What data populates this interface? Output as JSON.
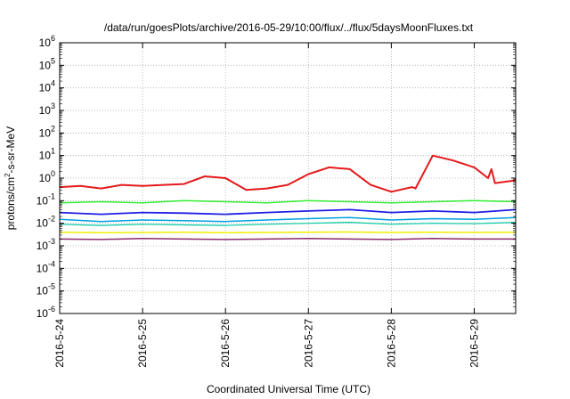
{
  "chart_data": {
    "type": "line",
    "title": "/data/run/goesPlots/archive/2016-05-29/10:00/flux/../flux/5daysMoonFluxes.txt",
    "xlabel": "Coordinated Universal Time (UTC)",
    "ylabel": "protons/cm²-s-sr-MeV",
    "ylabel_parts": {
      "base": "protons/cm",
      "sup": "2",
      "rest": "-s-sr-MeV"
    },
    "y_scale": "log",
    "ylim": [
      1e-06,
      1000000.0
    ],
    "y_ticks": [
      {
        "base": "10",
        "exp": "-6",
        "value": -6
      },
      {
        "base": "10",
        "exp": "-5",
        "value": -5
      },
      {
        "base": "10",
        "exp": "-4",
        "value": -4
      },
      {
        "base": "10",
        "exp": "-3",
        "value": -3
      },
      {
        "base": "10",
        "exp": "-2",
        "value": -2
      },
      {
        "base": "10",
        "exp": "-1",
        "value": -1
      },
      {
        "base": "10",
        "exp": "0",
        "value": 0
      },
      {
        "base": "10",
        "exp": "1",
        "value": 1
      },
      {
        "base": "10",
        "exp": "2",
        "value": 2
      },
      {
        "base": "10",
        "exp": "3",
        "value": 3
      },
      {
        "base": "10",
        "exp": "4",
        "value": 4
      },
      {
        "base": "10",
        "exp": "5",
        "value": 5
      },
      {
        "base": "10",
        "exp": "6",
        "value": 6
      }
    ],
    "xlim": [
      "2016-05-24 00:00",
      "2016-05-29 12:00"
    ],
    "x_ticks": [
      {
        "label": "2016-5-24",
        "value": "2016-05-24"
      },
      {
        "label": "2016-5-25",
        "value": "2016-05-25"
      },
      {
        "label": "2016-5-26",
        "value": "2016-05-26"
      },
      {
        "label": "2016-5-27",
        "value": "2016-05-27"
      },
      {
        "label": "2016-5-28",
        "value": "2016-05-28"
      },
      {
        "label": "2016-5-29",
        "value": "2016-05-29"
      }
    ],
    "grid": true,
    "legend": "none",
    "series": [
      {
        "color": "#e41a1c",
        "width": 2,
        "x": [
          "2016-05-24 00:00",
          "2016-05-24 06:00",
          "2016-05-24 12:00",
          "2016-05-24 18:00",
          "2016-05-25 00:00",
          "2016-05-25 06:00",
          "2016-05-25 12:00",
          "2016-05-25 18:00",
          "2016-05-26 00:00",
          "2016-05-26 06:00",
          "2016-05-26 12:00",
          "2016-05-26 18:00",
          "2016-05-27 00:00",
          "2016-05-27 06:00",
          "2016-05-27 12:00",
          "2016-05-27 18:00",
          "2016-05-28 00:00",
          "2016-05-28 06:00",
          "2016-05-28 07:00",
          "2016-05-28 12:00",
          "2016-05-28 18:00",
          "2016-05-29 00:00",
          "2016-05-29 04:00",
          "2016-05-29 05:00",
          "2016-05-29 06:00",
          "2016-05-29 12:00"
        ],
        "y": [
          0.4,
          0.45,
          0.35,
          0.5,
          0.45,
          0.5,
          0.55,
          1.2,
          1.0,
          0.3,
          0.35,
          0.5,
          1.5,
          3.0,
          2.5,
          0.5,
          0.25,
          0.4,
          0.35,
          10,
          6,
          3,
          1.0,
          2.5,
          0.6,
          0.8
        ]
      },
      {
        "color": "#33ee33",
        "width": 1.5,
        "x": [
          "2016-05-24 00:00",
          "2016-05-24 12:00",
          "2016-05-25 00:00",
          "2016-05-25 12:00",
          "2016-05-26 00:00",
          "2016-05-26 12:00",
          "2016-05-27 00:00",
          "2016-05-27 12:00",
          "2016-05-28 00:00",
          "2016-05-28 12:00",
          "2016-05-29 00:00",
          "2016-05-29 12:00"
        ],
        "y": [
          0.08,
          0.09,
          0.08,
          0.1,
          0.09,
          0.08,
          0.1,
          0.09,
          0.08,
          0.09,
          0.1,
          0.09
        ]
      },
      {
        "color": "#1e1ee6",
        "width": 1.8,
        "x": [
          "2016-05-24 00:00",
          "2016-05-24 12:00",
          "2016-05-25 00:00",
          "2016-05-25 12:00",
          "2016-05-26 00:00",
          "2016-05-26 12:00",
          "2016-05-27 00:00",
          "2016-05-27 12:00",
          "2016-05-28 00:00",
          "2016-05-28 12:00",
          "2016-05-29 00:00",
          "2016-05-29 12:00"
        ],
        "y": [
          0.03,
          0.025,
          0.03,
          0.028,
          0.025,
          0.03,
          0.035,
          0.04,
          0.03,
          0.035,
          0.03,
          0.04
        ]
      },
      {
        "color": "#00a0e0",
        "width": 1.5,
        "x": [
          "2016-05-24 00:00",
          "2016-05-24 12:00",
          "2016-05-25 00:00",
          "2016-05-25 12:00",
          "2016-05-26 00:00",
          "2016-05-26 12:00",
          "2016-05-27 00:00",
          "2016-05-27 12:00",
          "2016-05-28 00:00",
          "2016-05-28 12:00",
          "2016-05-29 00:00",
          "2016-05-29 12:00"
        ],
        "y": [
          0.015,
          0.012,
          0.014,
          0.013,
          0.012,
          0.014,
          0.016,
          0.018,
          0.014,
          0.016,
          0.015,
          0.018
        ]
      },
      {
        "color": "#00c8a0",
        "width": 1.2,
        "x": [
          "2016-05-24 00:00",
          "2016-05-24 12:00",
          "2016-05-25 00:00",
          "2016-05-25 12:00",
          "2016-05-26 00:00",
          "2016-05-26 12:00",
          "2016-05-27 00:00",
          "2016-05-27 12:00",
          "2016-05-28 00:00",
          "2016-05-28 12:00",
          "2016-05-29 00:00",
          "2016-05-29 12:00"
        ],
        "y": [
          0.009,
          0.008,
          0.009,
          0.0085,
          0.008,
          0.009,
          0.01,
          0.011,
          0.009,
          0.01,
          0.0095,
          0.011
        ]
      },
      {
        "color": "#f0f000",
        "width": 1.5,
        "x": [
          "2016-05-24 00:00",
          "2016-05-24 12:00",
          "2016-05-25 00:00",
          "2016-05-25 12:00",
          "2016-05-26 00:00",
          "2016-05-26 12:00",
          "2016-05-27 00:00",
          "2016-05-27 12:00",
          "2016-05-28 00:00",
          "2016-05-28 12:00",
          "2016-05-29 00:00",
          "2016-05-29 12:00"
        ],
        "y": [
          0.004,
          0.0038,
          0.0039,
          0.004,
          0.0038,
          0.0039,
          0.004,
          0.0041,
          0.0039,
          0.004,
          0.0039,
          0.004
        ]
      },
      {
        "color": "#8b2a6b",
        "width": 1.5,
        "x": [
          "2016-05-24 00:00",
          "2016-05-24 12:00",
          "2016-05-25 00:00",
          "2016-05-25 12:00",
          "2016-05-26 00:00",
          "2016-05-26 12:00",
          "2016-05-27 00:00",
          "2016-05-27 12:00",
          "2016-05-28 00:00",
          "2016-05-28 12:00",
          "2016-05-29 00:00",
          "2016-05-29 12:00"
        ],
        "y": [
          0.002,
          0.0019,
          0.0021,
          0.002,
          0.0019,
          0.002,
          0.0021,
          0.002,
          0.0019,
          0.0021,
          0.002,
          0.002
        ]
      }
    ]
  }
}
